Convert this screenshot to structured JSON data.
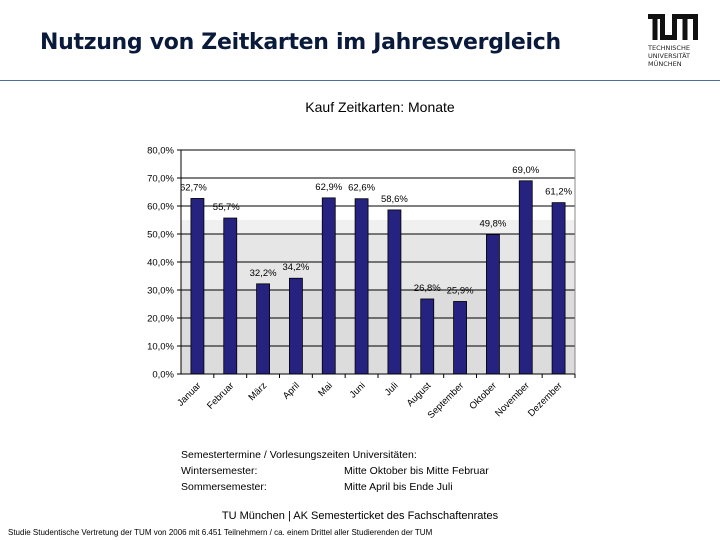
{
  "slide": {
    "title": "Nutzung von Zeitkarten im Jahresvergleich"
  },
  "logo": {
    "line1": "TECHNISCHE",
    "line2": "UNIVERSITÄT",
    "line3": "MÜNCHEN"
  },
  "chart_data": {
    "type": "bar",
    "title": "Kauf Zeitkarten: Monate",
    "xlabel": "",
    "ylabel": "",
    "categories": [
      "Januar",
      "Februar",
      "März",
      "April",
      "Mai",
      "Juni",
      "Juli",
      "August",
      "September",
      "Oktober",
      "November",
      "Dezember"
    ],
    "values": [
      62.7,
      55.7,
      32.2,
      34.2,
      62.9,
      62.6,
      58.6,
      26.8,
      25.9,
      49.8,
      69.0,
      61.2
    ],
    "value_labels": [
      "62,7%",
      "55,7%",
      "32,2%",
      "34,2%",
      "62,9%",
      "62,6%",
      "58,6%",
      "26,8%",
      "25,9%",
      "49,8%",
      "69,0%",
      "61,2%"
    ],
    "y_ticks": [
      "0,0%",
      "10,0%",
      "20,0%",
      "30,0%",
      "40,0%",
      "50,0%",
      "60,0%",
      "70,0%",
      "80,0%"
    ],
    "ylim": [
      0,
      80
    ],
    "grid": true,
    "bar_color": "#25237f"
  },
  "notes": {
    "heading": "Semestertermine / Vorlesungszeiten Universitäten:",
    "rows": [
      {
        "label": "Wintersemester:",
        "value": "Mitte Oktober bis Mitte Februar"
      },
      {
        "label": "Sommersemester:",
        "value": "Mitte April bis Ende Juli"
      }
    ]
  },
  "footer": {
    "center": "TU München | AK Semesterticket des Fachschaftenrates",
    "note": "Studie Studentische Vertretung der TUM von 2006 mit 6.451 Teilnehmern / ca. einem Drittel aller Studierenden der TUM"
  }
}
